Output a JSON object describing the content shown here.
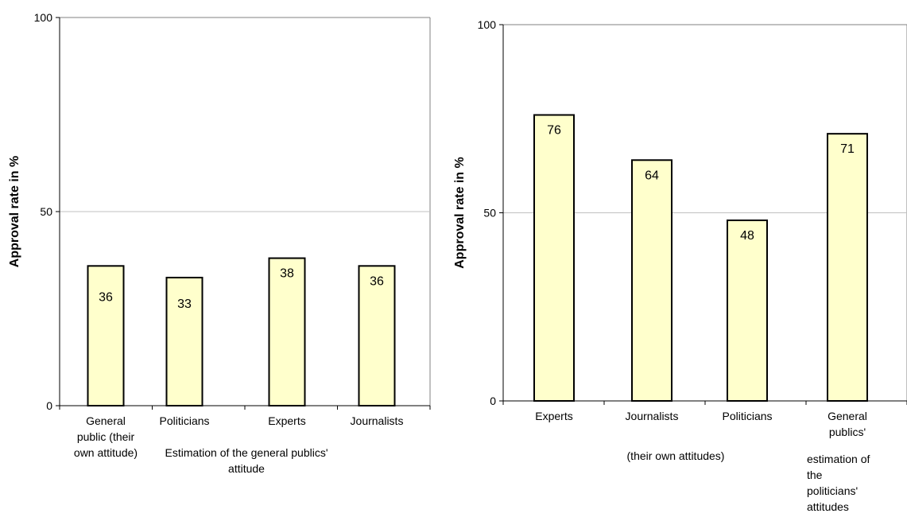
{
  "chart_data": [
    {
      "type": "bar",
      "ylabel": "Approval rate in %",
      "ylim": [
        0,
        100
      ],
      "yticks": [
        "0",
        "50",
        "100"
      ],
      "categories": [
        [
          "General",
          "public (their",
          "own attitude)"
        ],
        [
          "Politicians"
        ],
        [
          "Experts"
        ],
        [
          "Journalists"
        ]
      ],
      "values": [
        36,
        33,
        38,
        36
      ],
      "data_labels": [
        "36",
        "33",
        "38",
        "36"
      ],
      "group_note": [
        "Estimation of the general publics'",
        "attitude"
      ],
      "grid": "horizontal at 50",
      "bar_color": "#FFFFCC"
    },
    {
      "type": "bar",
      "ylabel": "Approval rate in %",
      "ylim": [
        0,
        100
      ],
      "yticks": [
        "0",
        "50",
        "100"
      ],
      "categories": [
        [
          "Experts"
        ],
        [
          "Journalists"
        ],
        [
          "Politicians"
        ],
        [
          "General",
          "publics'"
        ]
      ],
      "values": [
        76,
        64,
        48,
        71
      ],
      "data_labels": [
        "76",
        "64",
        "48",
        "71"
      ],
      "group_note": [
        "(their own attitudes)"
      ],
      "extra_note": [
        "estimation of",
        "the",
        "politicians'",
        "attitudes"
      ],
      "grid": "horizontal at 50",
      "bar_color": "#FFFFCC"
    }
  ]
}
